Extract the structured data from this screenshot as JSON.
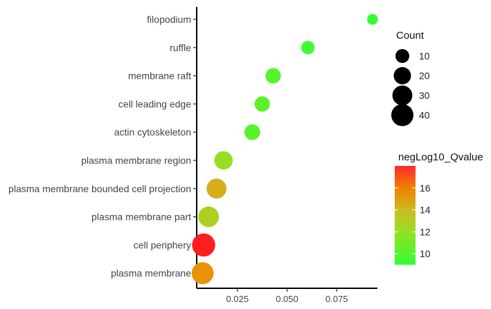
{
  "chart_data": {
    "type": "scatter",
    "title": "",
    "xlabel": "",
    "ylabel": "",
    "xlim": [
      0.0045,
      0.0955
    ],
    "xticks": [
      0.025,
      0.05,
      0.075
    ],
    "xtick_labels": [
      "0.025",
      "0.050",
      "0.075"
    ],
    "grid": false,
    "categories": [
      "filopodium",
      "ruffle",
      "membrane raft",
      "cell leading edge",
      "actin cytoskeleton",
      "plasma membrane region",
      "plasma membrane bounded cell projection",
      "plasma membrane part",
      "cell periphery",
      "plasma membrane"
    ],
    "points": [
      {
        "term": "filopodium",
        "x": 0.093,
        "count": 4,
        "neglog10_qvalue": 9.0
      },
      {
        "term": "ruffle",
        "x": 0.0605,
        "count": 9,
        "neglog10_qvalue": 9.2
      },
      {
        "term": "membrane raft",
        "x": 0.043,
        "count": 14,
        "neglog10_qvalue": 9.6
      },
      {
        "term": "cell leading edge",
        "x": 0.0375,
        "count": 14,
        "neglog10_qvalue": 9.8
      },
      {
        "term": "actin cytoskeleton",
        "x": 0.0325,
        "count": 15,
        "neglog10_qvalue": 9.7
      },
      {
        "term": "plasma membrane region",
        "x": 0.018,
        "count": 24,
        "neglog10_qvalue": 11.0
      },
      {
        "term": "plasma membrane bounded cell projection",
        "x": 0.0145,
        "count": 30,
        "neglog10_qvalue": 13.5
      },
      {
        "term": "plasma membrane part",
        "x": 0.0105,
        "count": 33,
        "neglog10_qvalue": 11.8
      },
      {
        "term": "cell periphery",
        "x": 0.008,
        "count": 45,
        "neglog10_qvalue": 18.0
      },
      {
        "term": "plasma membrane",
        "x": 0.0075,
        "count": 39,
        "neglog10_qvalue": 14.6
      }
    ],
    "size_legend": {
      "title": "Count",
      "values": [
        10,
        20,
        30,
        40
      ],
      "labels": [
        "10",
        "20",
        "30",
        "40"
      ]
    },
    "color_legend": {
      "title": "negLog10_Qvalue",
      "range": [
        9,
        18
      ],
      "ticks": [
        10,
        12,
        14,
        16
      ],
      "tick_labels": [
        "10",
        "12",
        "14",
        "16"
      ],
      "colors": [
        "#33ff33",
        "#99dd22",
        "#ccbb22",
        "#ee8800",
        "#ff2a2a"
      ]
    }
  }
}
